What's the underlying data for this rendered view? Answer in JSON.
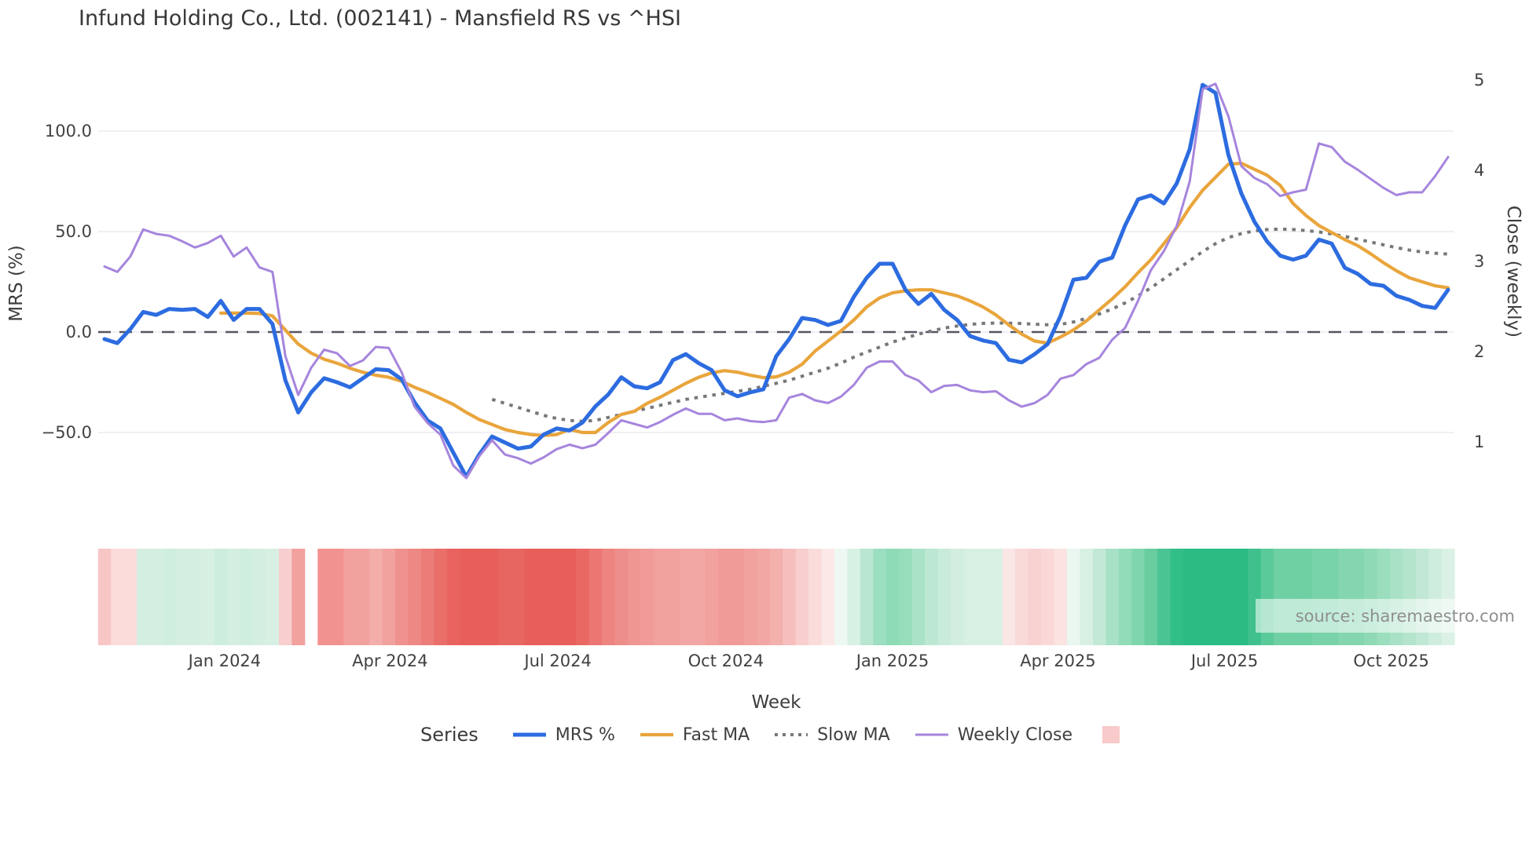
{
  "header": {
    "title": "Infund Holding Co., Ltd. (002141) - Mansfield RS vs ^HSI"
  },
  "source_note": {
    "text": "source: sharemaestro.com"
  },
  "legend": {
    "title": "Series",
    "heatmap_swatch_color": "#f8caca"
  },
  "chart_data": {
    "type": "line",
    "title": "Infund Holding Co., Ltd. (002141) - Mansfield RS vs ^HSI",
    "x_axis": {
      "label": "Week",
      "unit": "week-index",
      "tick_labels": [
        "Jan 2024",
        "Apr 2024",
        "Jul 2024",
        "Oct 2024",
        "Jan 2025",
        "Apr 2025",
        "Jul 2025",
        "Oct 2025"
      ],
      "tick_week_positions": [
        9.3,
        22.1,
        35.1,
        48.1,
        61.0,
        73.8,
        86.7,
        99.6
      ],
      "n_weeks": 105
    },
    "left_axis": {
      "label": "MRS (%)",
      "tick_labels": [
        "100.0",
        "50.0",
        "0.0",
        "−50.0"
      ],
      "tick_values": [
        100,
        50,
        0,
        -50
      ],
      "zero_line": true,
      "grid": true
    },
    "right_axis": {
      "label": "Close (weekly)",
      "tick_labels": [
        "5",
        "4",
        "3",
        "2",
        "1"
      ],
      "tick_values": [
        5,
        4,
        3,
        2,
        1
      ]
    },
    "zero_line_color": "#565664",
    "grid_color": "#ebebf0",
    "series": [
      {
        "name": "MRS %",
        "axis": "left",
        "style": "solid",
        "color": "#2d6ce0",
        "width": 5,
        "start_index": 0,
        "values": [
          -3.5,
          -5.5,
          1.5,
          10,
          8.5,
          11.5,
          11,
          11.5,
          7.5,
          15.5,
          6,
          11.5,
          11.5,
          4,
          -24,
          -40,
          -30,
          -23,
          -25,
          -27.5,
          -23,
          -18.5,
          -19,
          -23.5,
          -35,
          -44,
          -48,
          -60,
          -72,
          -61,
          -52,
          -55,
          -58,
          -57,
          -51,
          -48,
          -49,
          -45,
          -37,
          -31,
          -22.5,
          -27,
          -28,
          -25,
          -14,
          -11,
          -15.5,
          -19,
          -29,
          -32,
          -30,
          -28.5,
          -12,
          -3.5,
          7,
          6,
          3.5,
          5.5,
          17.5,
          27,
          34,
          34,
          21,
          14,
          19,
          11,
          6,
          -2,
          -4.2,
          -5.5,
          -13.8,
          -15.1,
          -11,
          -6,
          8,
          26,
          27,
          35,
          37,
          53,
          66,
          68,
          64,
          74,
          91,
          123,
          119,
          88,
          69,
          55,
          45,
          38,
          36,
          38,
          46,
          44,
          32,
          29,
          24,
          23,
          18,
          16,
          13,
          12,
          21
        ]
      },
      {
        "name": "Fast MA",
        "axis": "left",
        "style": "solid",
        "color": "#e9a53c",
        "width": 4.2,
        "start_index": 9,
        "values": [
          9.4,
          9.4,
          9.4,
          9.2,
          8,
          1,
          -6,
          -10.5,
          -13.5,
          -15.5,
          -18,
          -20,
          -21.5,
          -22.5,
          -24.5,
          -27.5,
          -30,
          -33,
          -36,
          -40,
          -43.5,
          -46,
          -48.5,
          -50,
          -51,
          -51.5,
          -51,
          -48.5,
          -50,
          -50,
          -45,
          -41,
          -39.5,
          -35.5,
          -32.5,
          -29,
          -25.5,
          -22.5,
          -20.3,
          -19.2,
          -20,
          -21.5,
          -22.7,
          -22.3,
          -20,
          -16,
          -9.5,
          -4.5,
          0.5,
          6,
          12.5,
          17,
          19.5,
          20.5,
          21,
          21,
          19.5,
          18,
          15.5,
          12.5,
          8.5,
          3.5,
          -1,
          -4.5,
          -5.5,
          -2.5,
          1,
          5.5,
          11,
          16.5,
          22.5,
          29.5,
          36,
          44,
          52,
          62,
          70.5,
          77,
          83.5,
          84,
          81,
          78,
          73,
          64,
          58,
          53,
          49.5,
          46,
          43,
          39,
          34.5,
          30.5,
          27,
          25,
          23,
          22
        ]
      },
      {
        "name": "Slow MA",
        "axis": "left",
        "style": "dotted",
        "color": "#76787a",
        "width": 4,
        "start_index": 30,
        "values": [
          -33.5,
          -35.5,
          -37.5,
          -39.5,
          -41.5,
          -43,
          -44,
          -44.5,
          -44,
          -42.5,
          -41,
          -39.5,
          -38,
          -36.5,
          -35,
          -33.5,
          -32.5,
          -31.5,
          -30.5,
          -29.5,
          -28.5,
          -27,
          -25.5,
          -24,
          -22,
          -20,
          -18,
          -15.5,
          -12.5,
          -10,
          -7.5,
          -5,
          -3,
          -1,
          0.5,
          2,
          3,
          3.8,
          4.3,
          4.5,
          4.4,
          4.2,
          3.9,
          3.6,
          3.8,
          5,
          6.8,
          9,
          11.5,
          14.5,
          18,
          22,
          26.5,
          31,
          35.5,
          40,
          44,
          47,
          49,
          50.3,
          51,
          51.2,
          51,
          50.5,
          49.8,
          48.8,
          47.6,
          46.2,
          44.8,
          43.4,
          42,
          40.8,
          39.8,
          39.2,
          38.8
        ]
      },
      {
        "name": "Weekly Close",
        "axis": "right",
        "style": "solid",
        "color": "#a685dd",
        "width": 3,
        "start_index": 0,
        "values": [
          2.94,
          2.88,
          3.05,
          3.35,
          3.3,
          3.28,
          3.22,
          3.15,
          3.2,
          3.28,
          3.05,
          3.15,
          2.93,
          2.88,
          1.95,
          1.52,
          1.82,
          2.02,
          1.98,
          1.84,
          1.9,
          2.05,
          2.04,
          1.77,
          1.39,
          1.21,
          1.08,
          0.74,
          0.6,
          0.84,
          1.02,
          0.86,
          0.82,
          0.76,
          0.83,
          0.92,
          0.97,
          0.93,
          0.97,
          1.1,
          1.24,
          1.2,
          1.16,
          1.22,
          1.3,
          1.37,
          1.31,
          1.31,
          1.24,
          1.26,
          1.23,
          1.22,
          1.24,
          1.49,
          1.53,
          1.46,
          1.43,
          1.5,
          1.63,
          1.82,
          1.89,
          1.89,
          1.74,
          1.68,
          1.55,
          1.62,
          1.63,
          1.57,
          1.55,
          1.56,
          1.46,
          1.39,
          1.43,
          1.52,
          1.7,
          1.74,
          1.86,
          1.93,
          2.13,
          2.26,
          2.56,
          2.9,
          3.11,
          3.39,
          3.88,
          4.9,
          4.96,
          4.6,
          4.05,
          3.92,
          3.85,
          3.72,
          3.76,
          3.79,
          4.3,
          4.26,
          4.1,
          4.01,
          3.91,
          3.81,
          3.73,
          3.76,
          3.76,
          3.94,
          4.15
        ]
      }
    ],
    "heatmap": {
      "description": "weekly color strip below plot, white cell = missing week",
      "colors": [
        "#f7c6c5",
        "#fbdcdb",
        "#fbdcdb",
        "#d4efe1",
        "#d4efe1",
        "#d0eedf",
        "#d4efe1",
        "#d4efe1",
        "#d7f0e3",
        "#cdeddd",
        "#d4efe1",
        "#d0eedf",
        "#d4efe1",
        "#d7f0e3",
        "#f8cfce",
        "#f1a19e",
        "#ffffff",
        "#f2928f",
        "#f2928f",
        "#f2a19e",
        "#f1a29f",
        "#f3aeab",
        "#f1a29f",
        "#ef918e",
        "#ee8884",
        "#ec7c78",
        "#ea6f6b",
        "#e96460",
        "#e75e5a",
        "#e75e5a",
        "#e75e5a",
        "#e86662",
        "#e86662",
        "#e75e5a",
        "#e75e5a",
        "#e75e5a",
        "#e75e5a",
        "#e96864",
        "#eb7672",
        "#ed8480",
        "#ee8e8a",
        "#ef9693",
        "#f09b98",
        "#f1a19e",
        "#f1a19e",
        "#f2a7a4",
        "#f2a7a4",
        "#f1a19e",
        "#f09b98",
        "#f09b98",
        "#f1a19e",
        "#f2a7a4",
        "#f3b0ad",
        "#f6bfbd",
        "#f8cfce",
        "#fadcdb",
        "#fce8e7",
        "#eef8f3",
        "#d8f1e5",
        "#b9e6d1",
        "#9cdfc0",
        "#8edbb8",
        "#96ddbc",
        "#aae2c8",
        "#bce7d3",
        "#c8ebda",
        "#d2eee0",
        "#d8f0e4",
        "#d8f0e4",
        "#d8f0e4",
        "#fae6e5",
        "#f9dad9",
        "#f8d2d1",
        "#f9d8d7",
        "#fbe3e2",
        "#eaf6f0",
        "#d8f0e4",
        "#c2e9d6",
        "#a8e1c6",
        "#92dcba",
        "#7ed5ae",
        "#68cea0",
        "#4ac492",
        "#32be87",
        "#2abc83",
        "#2abc83",
        "#2abc83",
        "#2abc83",
        "#2abc83",
        "#3fc08c",
        "#5bca9b",
        "#6fd0a4",
        "#6fd0a4",
        "#6fd0a4",
        "#79d3aa",
        "#79d3aa",
        "#84d6b0",
        "#84d6b0",
        "#8fd9b6",
        "#9adebe",
        "#a8e1c6",
        "#b4e5cc",
        "#c0e8d4",
        "#cfedde",
        "#dcf1e6"
      ]
    }
  }
}
